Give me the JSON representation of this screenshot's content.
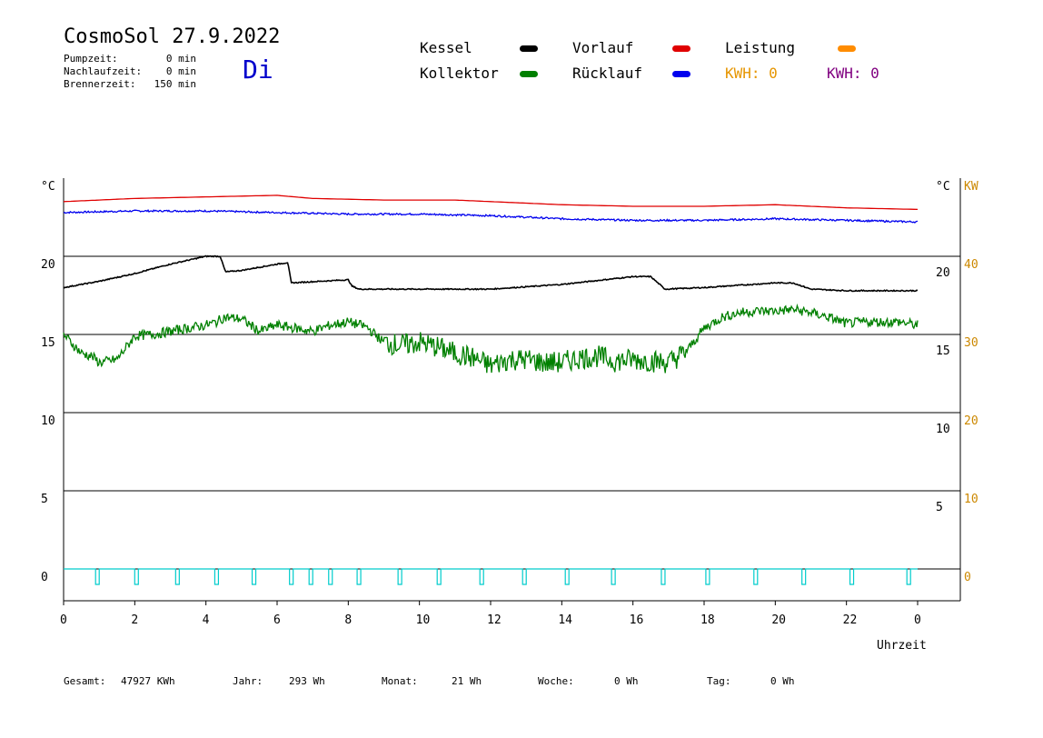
{
  "header": {
    "title": "CosmoSol 27.9.2022",
    "day": "Di",
    "info": [
      {
        "label": "Pumpzeit:",
        "value": "0 min"
      },
      {
        "label": "Nachlaufzeit:",
        "value": "0 min"
      },
      {
        "label": "Brennerzeit:",
        "value": "150 min"
      }
    ]
  },
  "legend": {
    "items": [
      {
        "name": "Kessel",
        "color": "#000000"
      },
      {
        "name": "Vorlauf",
        "color": "#e00000"
      },
      {
        "name": "Leistung",
        "color": "#ff8c00"
      },
      {
        "name": "Kollektor",
        "color": "#008000"
      },
      {
        "name": "Rücklauf",
        "color": "#0000ee"
      }
    ],
    "kwh_orange": "KWH: 0",
    "kwh_purple": "KWH: 0"
  },
  "colors": {
    "kwh_orange": "#e69500",
    "kwh_purple": "#800080",
    "axis_right": "#cc8800",
    "pump": "#00cccc"
  },
  "chart_data": {
    "type": "line",
    "xlabel": "Uhrzeit",
    "x_ticks": [
      "0",
      "2",
      "4",
      "6",
      "8",
      "10",
      "12",
      "14",
      "16",
      "18",
      "20",
      "22",
      "0"
    ],
    "xlim": [
      0,
      24
    ],
    "y_left_label": "°C",
    "y_left_ticks": [
      "0",
      "5",
      "10",
      "15",
      "20"
    ],
    "y_mid_ticks": [
      "5",
      "10",
      "15",
      "20"
    ],
    "y_right_label_c": "°C",
    "y_right_label_kw": "KW",
    "y_right_ticks": [
      "0",
      "10",
      "20",
      "30",
      "40"
    ],
    "ylim": [
      -1.5,
      24.5
    ],
    "grid": true,
    "series": [
      {
        "name": "Vorlauf",
        "color": "#e00000",
        "x": [
          0,
          2,
          4,
          6,
          7,
          9,
          11,
          13,
          14,
          16,
          18,
          20,
          22,
          24
        ],
        "y": [
          23.5,
          23.7,
          23.8,
          23.9,
          23.7,
          23.6,
          23.6,
          23.4,
          23.3,
          23.2,
          23.2,
          23.3,
          23.1,
          23.0
        ]
      },
      {
        "name": "Rücklauf",
        "color": "#0000ee",
        "x": [
          0,
          2,
          4,
          6,
          8,
          10,
          12,
          14,
          16,
          18,
          20,
          22,
          24
        ],
        "y": [
          22.8,
          22.9,
          22.9,
          22.8,
          22.7,
          22.7,
          22.6,
          22.4,
          22.3,
          22.3,
          22.4,
          22.3,
          22.2
        ],
        "noise": 0.08
      },
      {
        "name": "Kessel",
        "color": "#000000",
        "x": [
          0,
          1,
          2,
          3,
          4,
          4.4,
          4.55,
          5,
          6,
          6.3,
          6.4,
          8,
          8.1,
          8.3,
          10,
          12,
          14,
          16,
          16.5,
          16.9,
          18,
          20,
          20.5,
          21,
          22,
          24
        ],
        "y": [
          18.0,
          18.4,
          18.9,
          19.5,
          20.0,
          20.0,
          19.0,
          19.1,
          19.5,
          19.6,
          18.3,
          18.5,
          18.1,
          17.9,
          17.9,
          17.9,
          18.2,
          18.7,
          18.7,
          17.9,
          18.0,
          18.3,
          18.3,
          17.9,
          17.8,
          17.8
        ],
        "noise": 0.05
      },
      {
        "name": "Kollektor",
        "color": "#008000",
        "x": [
          0,
          0.5,
          0.8,
          1,
          1.5,
          2,
          2.5,
          3,
          3.5,
          4,
          4.3,
          4.5,
          5,
          5.5,
          6,
          6.5,
          7,
          7.5,
          8,
          8.5,
          9,
          9.5,
          10,
          10.5,
          11,
          11.5,
          12,
          12.5,
          13,
          13.5,
          14,
          14.5,
          15,
          15.5,
          16,
          16.5,
          17,
          17.5,
          18,
          18.5,
          19,
          19.5,
          20,
          20.5,
          21,
          21.5,
          22,
          22.5,
          23,
          23.5,
          24
        ],
        "y": [
          15.0,
          13.8,
          13.6,
          13.2,
          13.4,
          14.9,
          15.0,
          15.2,
          15.4,
          15.6,
          15.8,
          16.1,
          16.0,
          15.2,
          15.6,
          15.4,
          15.2,
          15.6,
          15.8,
          15.5,
          14.5,
          14.3,
          14.5,
          14.2,
          13.8,
          13.5,
          13.0,
          13.4,
          13.4,
          13.2,
          13.2,
          13.5,
          13.6,
          13.3,
          13.4,
          13.3,
          13.2,
          13.9,
          15.4,
          16.1,
          16.4,
          16.5,
          16.5,
          16.6,
          16.4,
          16.1,
          15.7,
          15.8,
          15.8,
          15.8,
          15.6
        ],
        "noise": 0.45
      },
      {
        "name": "Pumpe",
        "color": "#00cccc",
        "events_x": [
          0.95,
          2.05,
          3.2,
          4.3,
          5.35,
          6.4,
          6.95,
          7.5,
          8.3,
          9.45,
          10.55,
          11.75,
          12.95,
          14.15,
          15.45,
          16.85,
          18.1,
          19.45,
          20.8,
          22.15,
          23.75
        ],
        "baseline": 0,
        "depth": -1.0
      }
    ]
  },
  "footer": [
    {
      "label": "Gesamt:",
      "value": "47927 KWh"
    },
    {
      "label": "Jahr:",
      "value": "293 Wh"
    },
    {
      "label": "Monat:",
      "value": "21 Wh"
    },
    {
      "label": "Woche:",
      "value": "0 Wh"
    },
    {
      "label": "Tag:",
      "value": "0 Wh"
    }
  ]
}
